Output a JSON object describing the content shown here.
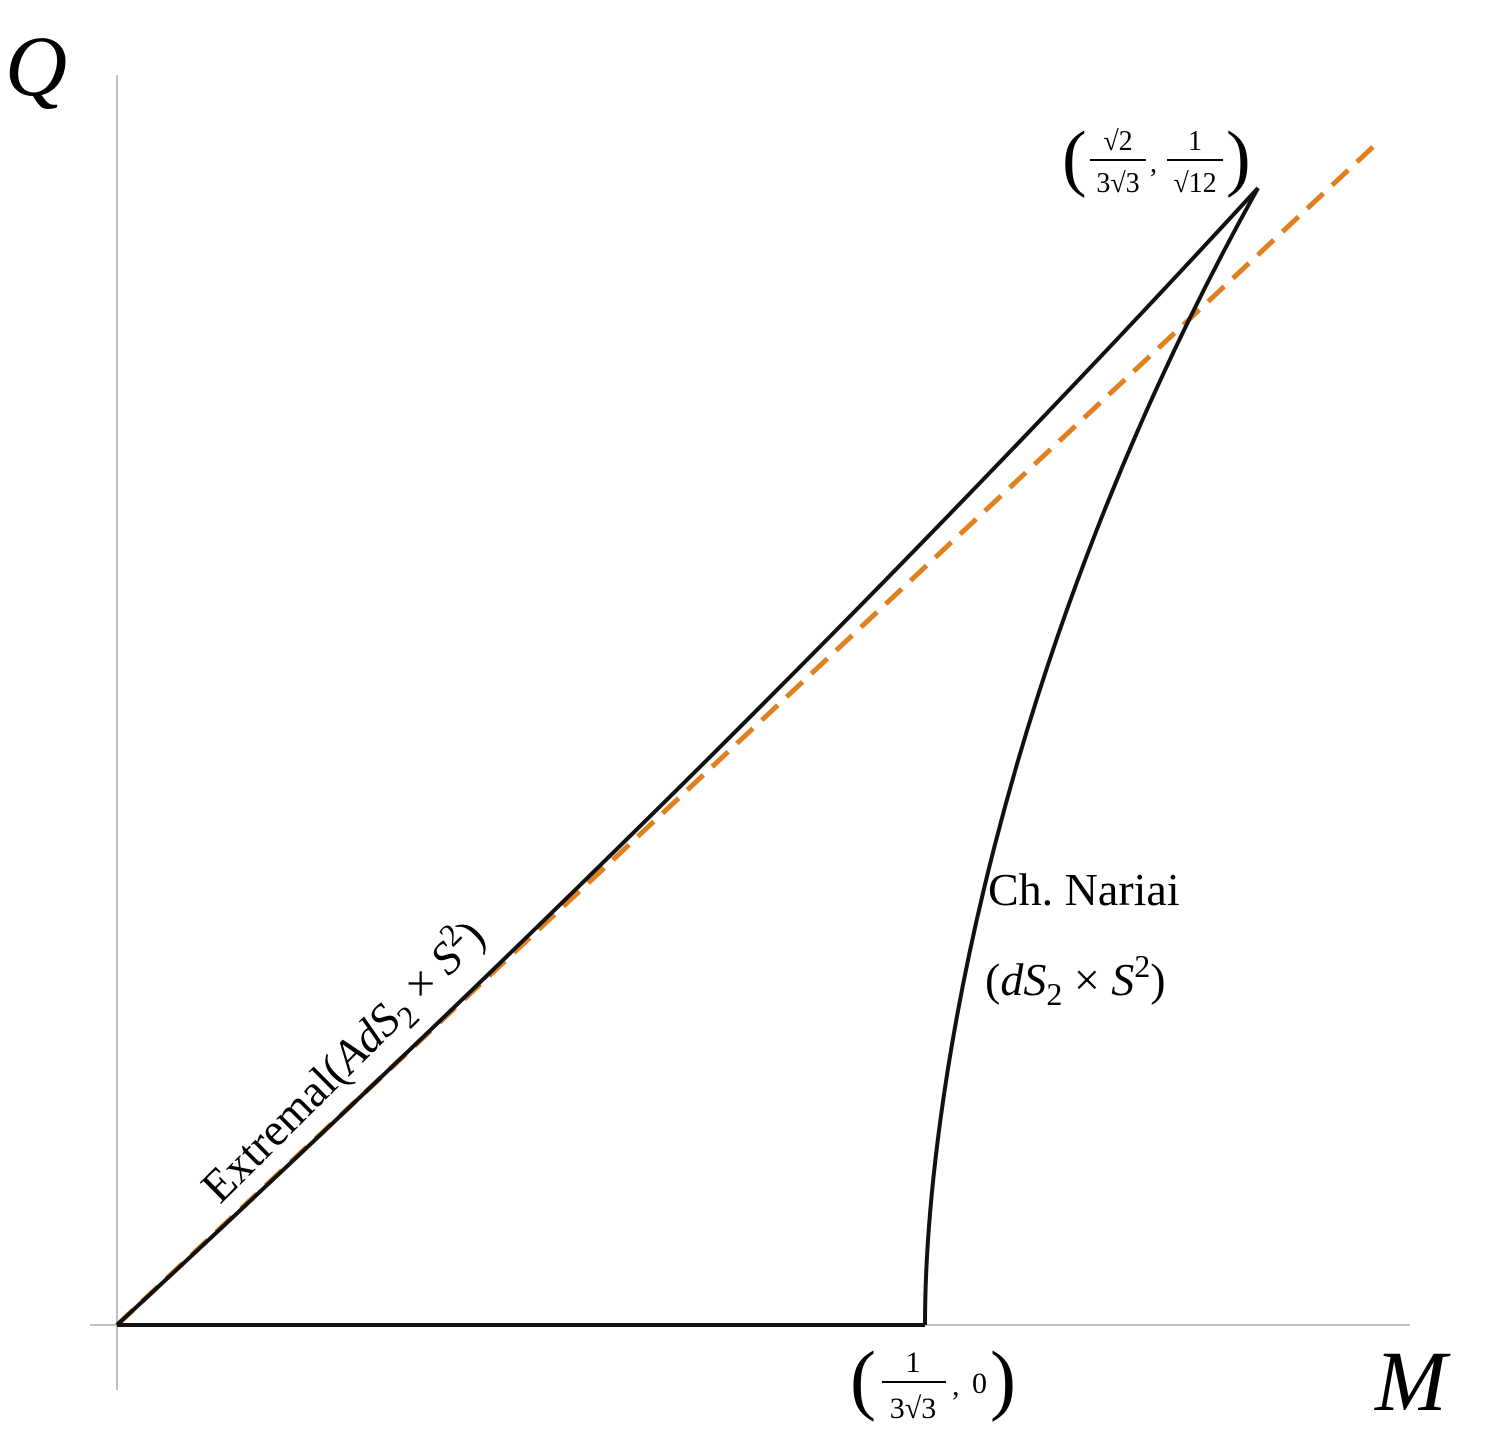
{
  "axes": {
    "y_label": "Q",
    "x_label": "M"
  },
  "curves": {
    "extremal_label": [
      "Extremal(",
      "AdS",
      "2",
      " × ",
      "S",
      "2",
      ")"
    ],
    "nariai_label_line1": "Ch. Nariai",
    "nariai_label_line2": [
      "(",
      "dS",
      "2",
      " × ",
      "S",
      "2",
      ")"
    ]
  },
  "points": {
    "nariai_end": {
      "open": "(",
      "x_num": "1",
      "x_den": "3√3",
      "sep": ",",
      "y": "0",
      "close": ")"
    },
    "corner": {
      "open": "(",
      "x_num": "√2",
      "x_den": "3√3",
      "sep": ",",
      "y_num": "1",
      "y_den": "√12",
      "close": ")"
    }
  }
}
